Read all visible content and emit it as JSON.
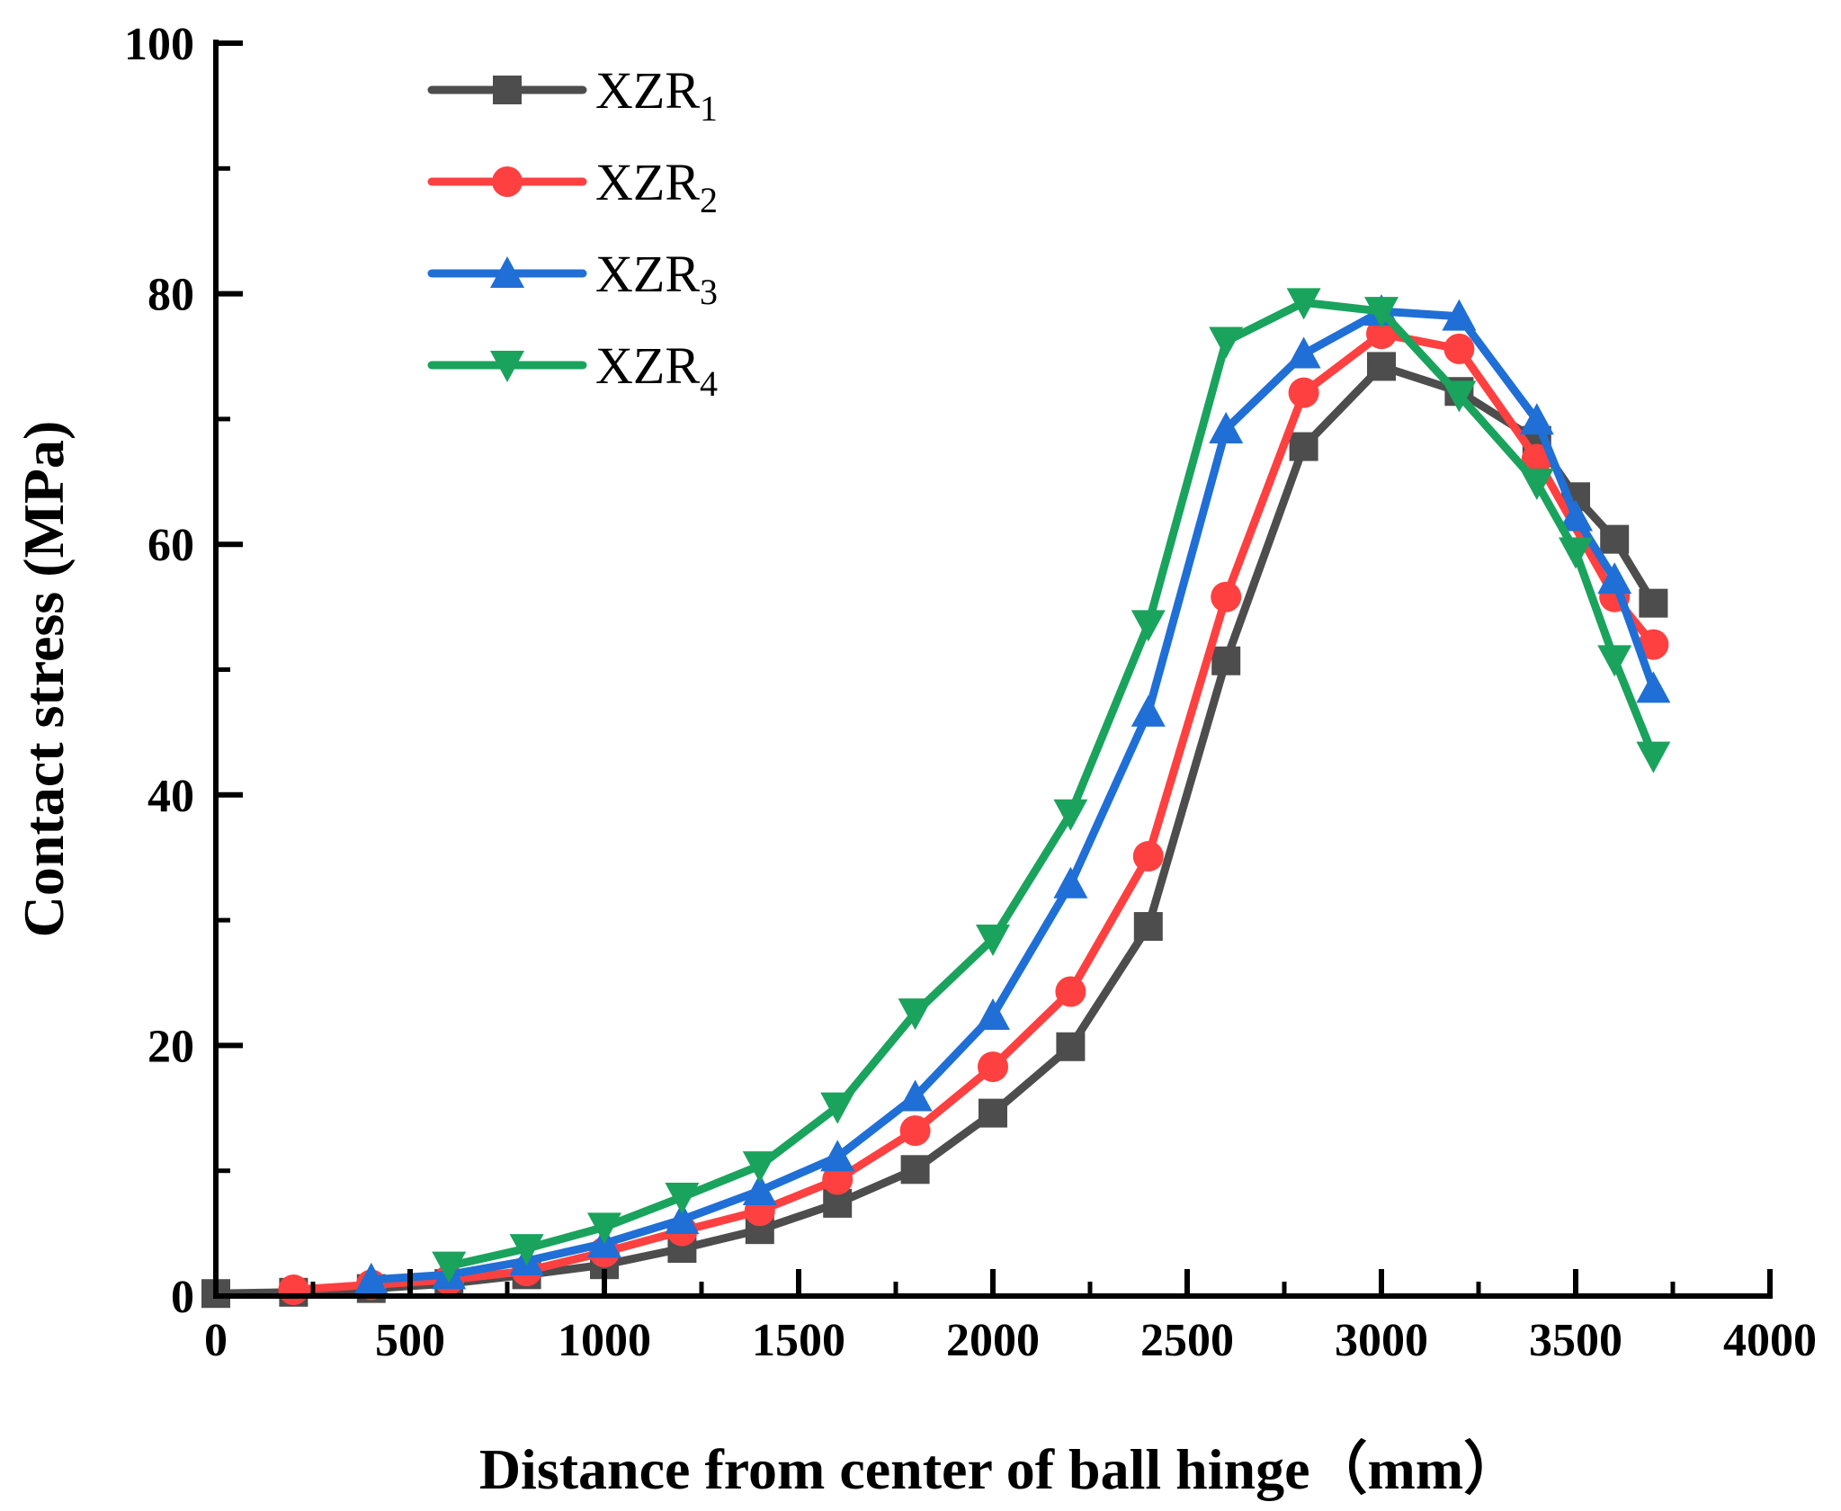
{
  "chart_data": {
    "type": "line",
    "xlabel": "Distance from center of ball hinge（mm）",
    "ylabel": "Contact stress (MPa)",
    "xlim": [
      0,
      4000
    ],
    "ylim": [
      0,
      100
    ],
    "xticks": [
      0,
      500,
      1000,
      1500,
      2000,
      2500,
      3000,
      3500,
      4000
    ],
    "yticks": [
      0,
      20,
      40,
      60,
      80,
      100
    ],
    "grid": false,
    "legend_position": "top-left",
    "series": [
      {
        "name": "XZR",
        "subscript": "1",
        "color": "#4d4d4d",
        "marker": "square",
        "x": [
          0,
          200,
          400,
          600,
          800,
          1000,
          1200,
          1400,
          1600,
          1800,
          2000,
          2200,
          2400,
          2600,
          2800,
          3000,
          3200,
          3400,
          3500,
          3600,
          3700
        ],
        "y": [
          0.2,
          0.3,
          0.6,
          1.0,
          1.7,
          2.5,
          3.8,
          5.3,
          7.4,
          10.1,
          14.6,
          19.9,
          29.5,
          50.7,
          67.8,
          74.2,
          72.2,
          68.3,
          63.8,
          60.4,
          55.3
        ]
      },
      {
        "name": "XZR",
        "subscript": "2",
        "color": "#ff4040",
        "marker": "circle",
        "x": [
          200,
          400,
          600,
          800,
          1000,
          1200,
          1400,
          1600,
          1800,
          2000,
          2200,
          2400,
          2600,
          2800,
          3000,
          3200,
          3400,
          3600,
          3700
        ],
        "y": [
          0.5,
          0.9,
          1.3,
          2.0,
          3.5,
          5.2,
          6.8,
          9.3,
          13.2,
          18.3,
          24.3,
          35.1,
          55.8,
          72.1,
          76.8,
          75.6,
          66.8,
          55.8,
          52.0
        ]
      },
      {
        "name": "XZR",
        "subscript": "3",
        "color": "#1f6fd6",
        "marker": "triangle-up",
        "x": [
          400,
          600,
          800,
          1000,
          1200,
          1400,
          1600,
          1800,
          2000,
          2200,
          2400,
          2600,
          2800,
          3000,
          3200,
          3400,
          3500,
          3600,
          3700
        ],
        "y": [
          1.3,
          1.7,
          2.8,
          4.2,
          6.1,
          8.4,
          11.1,
          15.9,
          22.4,
          32.9,
          46.6,
          69.2,
          75.2,
          78.6,
          78.2,
          69.9,
          62.2,
          57.2,
          48.5
        ]
      },
      {
        "name": "XZR",
        "subscript": "4",
        "color": "#1aa35c",
        "marker": "triangle-down",
        "x": [
          600,
          800,
          1000,
          1200,
          1400,
          1600,
          1800,
          2000,
          2200,
          2400,
          2600,
          2800,
          3000,
          3200,
          3400,
          3500,
          3600,
          3700
        ],
        "y": [
          2.4,
          3.8,
          5.5,
          7.9,
          10.4,
          15.1,
          22.6,
          28.5,
          38.5,
          53.6,
          76.2,
          79.3,
          78.6,
          71.9,
          64.9,
          59.4,
          50.8,
          43.1
        ]
      }
    ]
  }
}
